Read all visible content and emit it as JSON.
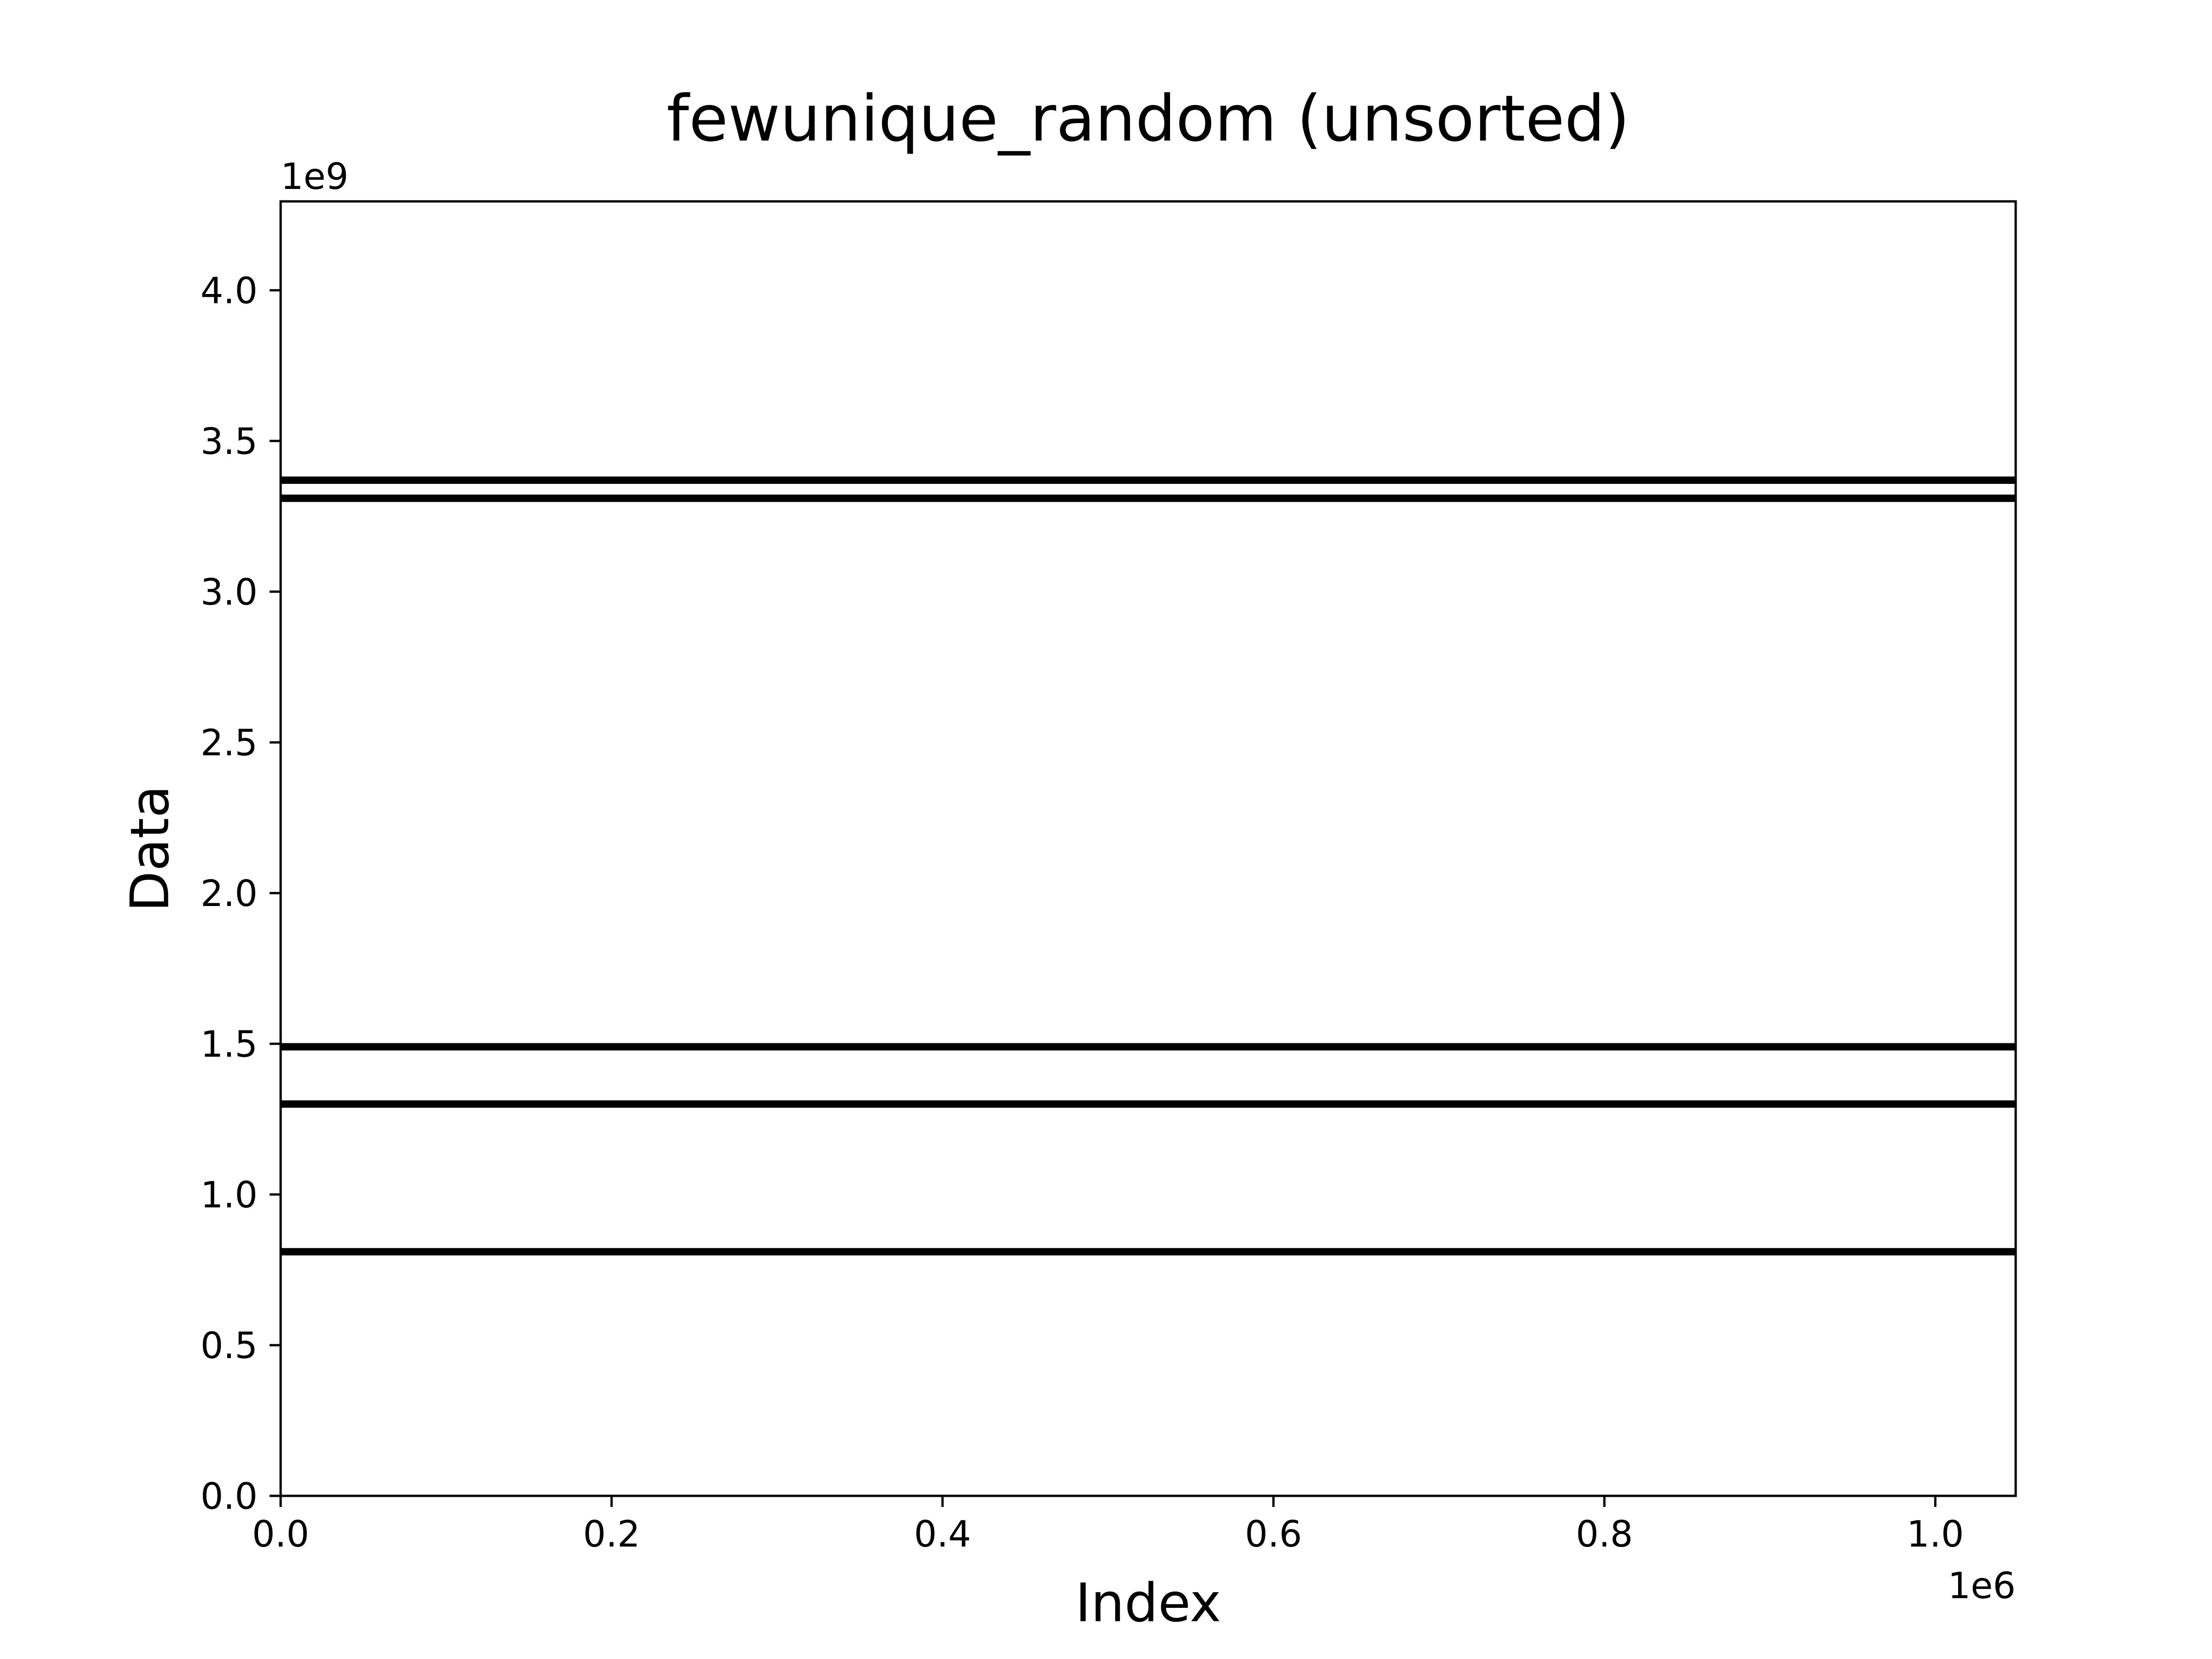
{
  "chart_data": {
    "type": "scatter",
    "title": "fewunique_random (unsorted)",
    "xlabel": "Index",
    "ylabel": "Data",
    "x_offset_label": "1e6",
    "y_offset_label": "1e9",
    "xlim": [
      0,
      1048576
    ],
    "ylim": [
      0,
      4294967296
    ],
    "x_ticks": [
      0,
      200000,
      400000,
      600000,
      800000,
      1000000
    ],
    "x_tick_labels": [
      "0.0",
      "0.2",
      "0.4",
      "0.6",
      "0.8",
      "1.0"
    ],
    "y_ticks": [
      0,
      500000000,
      1000000000,
      1500000000,
      2000000000,
      2500000000,
      3000000000,
      3500000000,
      4000000000
    ],
    "y_tick_labels": [
      "0.0",
      "0.5",
      "1.0",
      "1.5",
      "2.0",
      "2.5",
      "3.0",
      "3.5",
      "4.0"
    ],
    "grid": false,
    "series": [
      {
        "color": "#000000",
        "x_range": [
          0,
          1048576
        ],
        "unique_values": [
          810000000,
          1300000000,
          1490000000,
          3310000000,
          3370000000
        ]
      }
    ]
  }
}
